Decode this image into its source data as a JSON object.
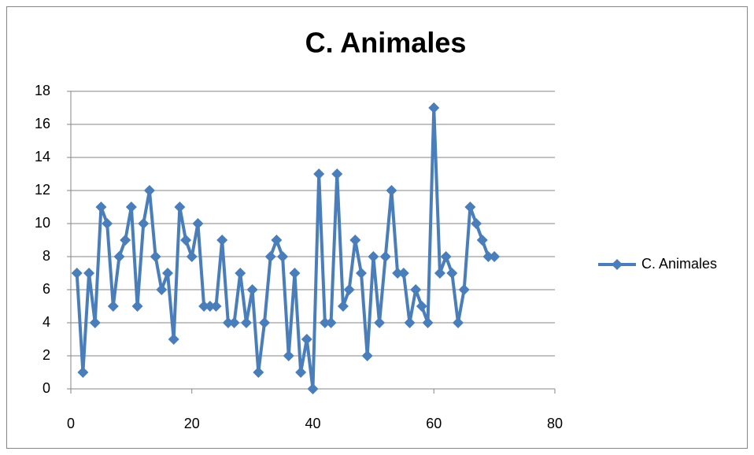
{
  "chart_data": {
    "type": "line",
    "title": "C. Animales",
    "x": [
      1,
      2,
      3,
      4,
      5,
      6,
      7,
      8,
      9,
      10,
      11,
      12,
      13,
      14,
      15,
      16,
      17,
      18,
      19,
      20,
      21,
      22,
      23,
      24,
      25,
      26,
      27,
      28,
      29,
      30,
      31,
      32,
      33,
      34,
      35,
      36,
      37,
      38,
      39,
      40,
      41,
      42,
      43,
      44,
      45,
      46,
      47,
      48,
      49,
      50,
      51,
      52,
      53,
      54,
      55,
      56,
      57,
      58,
      59,
      60,
      61,
      62,
      63,
      64,
      65,
      66,
      67,
      68,
      69,
      70
    ],
    "series": [
      {
        "name": "C. Animales",
        "color": "#4a7ebb",
        "values": [
          7,
          1,
          7,
          4,
          11,
          10,
          5,
          8,
          9,
          11,
          5,
          10,
          12,
          8,
          6,
          7,
          3,
          11,
          9,
          8,
          10,
          5,
          5,
          5,
          9,
          4,
          4,
          7,
          4,
          6,
          1,
          4,
          8,
          9,
          8,
          2,
          7,
          1,
          3,
          0,
          13,
          4,
          4,
          13,
          5,
          6,
          9,
          7,
          2,
          8,
          4,
          8,
          12,
          7,
          7,
          4,
          6,
          5,
          4,
          17,
          7,
          8,
          7,
          4,
          6,
          11,
          10,
          9,
          8,
          8
        ]
      }
    ],
    "xlim": [
      0,
      80
    ],
    "xticks": [
      0,
      20,
      40,
      60,
      80
    ],
    "ylim": [
      0,
      18
    ],
    "yticks": [
      0,
      2,
      4,
      6,
      8,
      10,
      12,
      14,
      16,
      18
    ],
    "grid": true,
    "legend": "right"
  }
}
